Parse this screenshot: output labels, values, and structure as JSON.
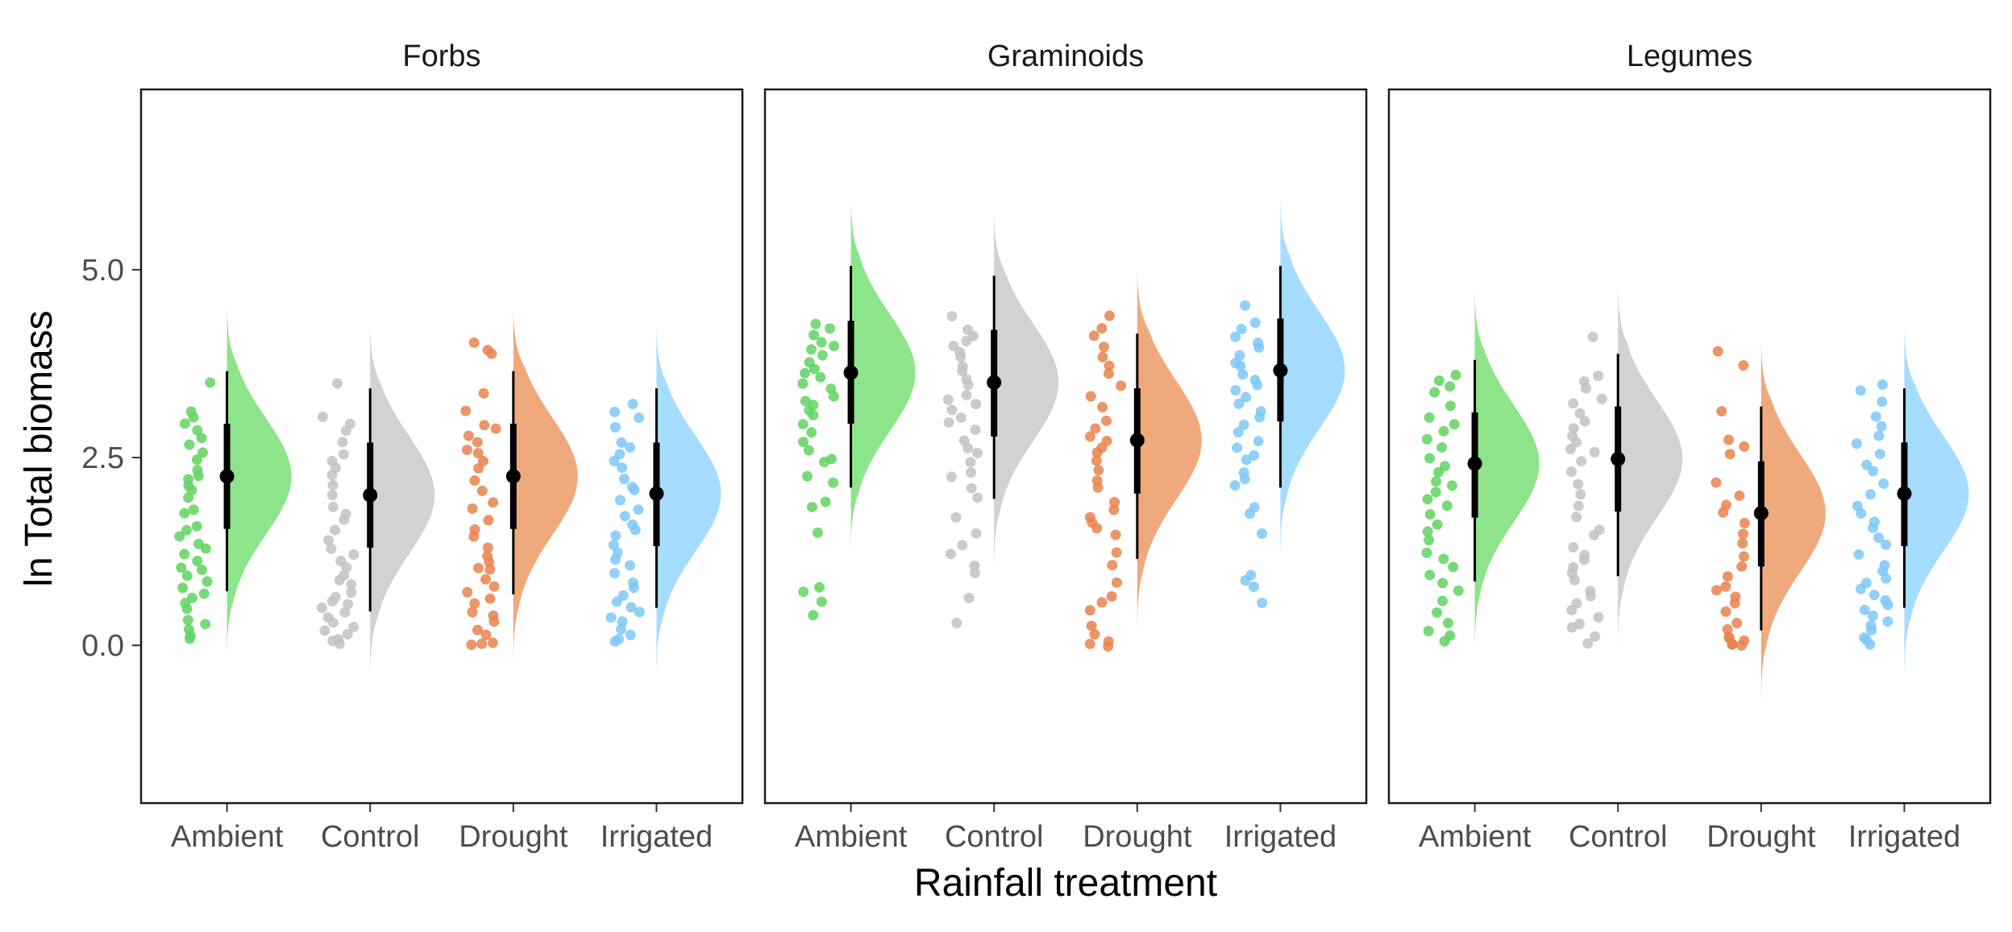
{
  "chart_data": {
    "type": "raincloud",
    "xlabel": "Rainfall treatment",
    "ylabel": "ln Total biomass",
    "ylim": [
      -2.1,
      7.4
    ],
    "yticks": [
      0.0,
      2.5,
      5.0
    ],
    "ytick_labels": [
      "0.0",
      "2.5",
      "5.0"
    ],
    "categories": [
      "Ambient",
      "Control",
      "Drought",
      "Irrigated"
    ],
    "colors": {
      "Ambient": "#5fd35f",
      "Control": "#c2c2c2",
      "Drought": "#e8834e",
      "Irrigated": "#7cc8f8"
    },
    "density_colors": {
      "Ambient": "#8ee48b",
      "Control": "#d2d2d2",
      "Drought": "#f0a97d",
      "Irrigated": "#a6dcff"
    },
    "summary_color": "#000000",
    "grid": false,
    "panels": [
      {
        "label": "Forbs",
        "groups": [
          {
            "category": "Ambient",
            "mean": 2.25,
            "q25": 1.55,
            "q75": 2.95,
            "lo": 0.72,
            "hi": 3.65,
            "dmin": -0.22,
            "dmax": 4.55,
            "points": [
              0.08,
              0.15,
              0.22,
              0.3,
              0.35,
              0.48,
              0.55,
              0.62,
              0.7,
              0.78,
              0.85,
              0.92,
              1.0,
              1.05,
              1.12,
              1.2,
              1.28,
              1.35,
              1.45,
              1.52,
              1.6,
              1.75,
              1.82,
              1.95,
              2.05,
              2.12,
              2.2,
              2.25,
              2.35,
              2.45,
              2.55,
              2.65,
              2.75,
              2.85,
              2.95,
              3.05,
              3.12,
              3.5
            ]
          },
          {
            "category": "Control",
            "mean": 2.0,
            "q25": 1.3,
            "q75": 2.7,
            "lo": 0.45,
            "hi": 3.42,
            "dmin": -0.45,
            "dmax": 4.28,
            "points": [
              0.02,
              0.05,
              0.1,
              0.15,
              0.2,
              0.25,
              0.3,
              0.38,
              0.45,
              0.5,
              0.55,
              0.6,
              0.65,
              0.72,
              0.8,
              0.88,
              0.95,
              1.05,
              1.12,
              1.2,
              1.3,
              1.42,
              1.55,
              1.65,
              1.75,
              1.85,
              2.0,
              2.15,
              2.25,
              2.35,
              2.45,
              2.55,
              2.7,
              2.85,
              2.95,
              3.05,
              3.5
            ]
          },
          {
            "category": "Drought",
            "mean": 2.25,
            "q25": 1.55,
            "q75": 2.95,
            "lo": 0.68,
            "hi": 3.65,
            "dmin": -0.32,
            "dmax": 4.5,
            "points": [
              0.0,
              0.02,
              0.05,
              0.12,
              0.2,
              0.3,
              0.38,
              0.45,
              0.55,
              0.62,
              0.7,
              0.8,
              0.9,
              1.0,
              1.05,
              1.12,
              1.2,
              1.3,
              1.45,
              1.55,
              1.65,
              1.8,
              1.9,
              2.05,
              2.2,
              2.35,
              2.45,
              2.55,
              2.62,
              2.7,
              2.78,
              2.88,
              2.95,
              3.1,
              3.35,
              3.9,
              3.95,
              4.05
            ]
          },
          {
            "category": "Irrigated",
            "mean": 2.02,
            "q25": 1.32,
            "q75": 2.7,
            "lo": 0.5,
            "hi": 3.42,
            "dmin": -0.45,
            "dmax": 4.28,
            "points": [
              0.05,
              0.1,
              0.15,
              0.22,
              0.3,
              0.38,
              0.45,
              0.52,
              0.6,
              0.68,
              0.75,
              0.85,
              0.95,
              1.08,
              1.15,
              1.22,
              1.35,
              1.45,
              1.52,
              1.6,
              1.72,
              1.8,
              1.95,
              2.05,
              2.12,
              2.22,
              2.35,
              2.45,
              2.55,
              2.62,
              2.7,
              2.9,
              3.05,
              3.12,
              3.2
            ]
          }
        ]
      },
      {
        "label": "Graminoids",
        "groups": [
          {
            "category": "Ambient",
            "mean": 3.63,
            "q25": 2.95,
            "q75": 4.32,
            "lo": 2.1,
            "hi": 5.05,
            "dmin": 1.22,
            "dmax": 5.98,
            "points": [
              0.42,
              0.58,
              0.72,
              0.78,
              1.5,
              1.85,
              1.9,
              2.15,
              2.25,
              2.42,
              2.5,
              2.6,
              2.72,
              2.85,
              2.95,
              3.05,
              3.12,
              3.2,
              3.25,
              3.32,
              3.4,
              3.48,
              3.55,
              3.62,
              3.7,
              3.78,
              3.85,
              3.92,
              4.0,
              4.05,
              4.12,
              4.2,
              4.28
            ]
          },
          {
            "category": "Control",
            "mean": 3.5,
            "q25": 2.78,
            "q75": 4.2,
            "lo": 1.95,
            "hi": 4.92,
            "dmin": 0.95,
            "dmax": 5.8,
            "points": [
              0.28,
              0.62,
              0.95,
              1.05,
              1.2,
              1.35,
              1.5,
              1.7,
              1.95,
              2.1,
              2.25,
              2.3,
              2.45,
              2.55,
              2.62,
              2.72,
              2.85,
              2.95,
              3.05,
              3.12,
              3.2,
              3.28,
              3.35,
              3.45,
              3.55,
              3.65,
              3.72,
              3.82,
              3.92,
              4.0,
              4.05,
              4.12,
              4.2,
              4.38
            ]
          },
          {
            "category": "Drought",
            "mean": 2.73,
            "q25": 2.02,
            "q75": 3.42,
            "lo": 1.15,
            "hi": 4.15,
            "dmin": 0.12,
            "dmax": 5.02,
            "points": [
              0.0,
              0.02,
              0.05,
              0.15,
              0.28,
              0.45,
              0.58,
              0.65,
              0.85,
              1.05,
              1.25,
              1.45,
              1.55,
              1.62,
              1.7,
              1.8,
              1.9,
              2.1,
              2.2,
              2.35,
              2.45,
              2.55,
              2.62,
              2.7,
              2.78,
              2.9,
              3.0,
              3.15,
              3.3,
              3.45,
              3.6,
              3.72,
              3.85,
              3.95,
              4.1,
              4.2,
              4.38
            ]
          },
          {
            "category": "Irrigated",
            "mean": 3.66,
            "q25": 2.98,
            "q75": 4.35,
            "lo": 2.1,
            "hi": 5.05,
            "dmin": 1.12,
            "dmax": 6.0,
            "points": [
              0.55,
              0.8,
              0.88,
              0.95,
              1.5,
              1.75,
              1.85,
              2.12,
              2.2,
              2.3,
              2.45,
              2.52,
              2.62,
              2.72,
              2.85,
              2.95,
              3.05,
              3.12,
              3.2,
              3.3,
              3.4,
              3.48,
              3.55,
              3.62,
              3.7,
              3.78,
              3.85,
              3.95,
              4.02,
              4.1,
              4.2,
              4.3,
              4.52
            ]
          }
        ]
      },
      {
        "label": "Legumes",
        "groups": [
          {
            "category": "Ambient",
            "mean": 2.42,
            "q25": 1.7,
            "q75": 3.1,
            "lo": 0.85,
            "hi": 3.8,
            "dmin": -0.18,
            "dmax": 4.75,
            "points": [
              0.05,
              0.12,
              0.2,
              0.28,
              0.45,
              0.6,
              0.72,
              0.85,
              0.95,
              1.05,
              1.15,
              1.25,
              1.38,
              1.5,
              1.62,
              1.75,
              1.85,
              1.95,
              2.05,
              2.12,
              2.2,
              2.3,
              2.4,
              2.5,
              2.62,
              2.75,
              2.85,
              2.95,
              3.05,
              3.2,
              3.35,
              3.45,
              3.52,
              3.6
            ]
          },
          {
            "category": "Control",
            "mean": 2.48,
            "q25": 1.78,
            "q75": 3.18,
            "lo": 0.92,
            "hi": 3.88,
            "dmin": -0.12,
            "dmax": 4.85,
            "points": [
              0.02,
              0.12,
              0.22,
              0.3,
              0.38,
              0.48,
              0.55,
              0.65,
              0.72,
              0.85,
              0.95,
              1.05,
              1.15,
              1.22,
              1.3,
              1.45,
              1.52,
              1.7,
              1.85,
              2.0,
              2.15,
              2.3,
              2.45,
              2.55,
              2.62,
              2.7,
              2.8,
              2.9,
              3.0,
              3.1,
              3.2,
              3.28,
              3.4,
              3.5,
              3.6,
              4.12
            ]
          },
          {
            "category": "Drought",
            "mean": 1.76,
            "q25": 1.05,
            "q75": 2.45,
            "lo": 0.2,
            "hi": 3.18,
            "dmin": -0.82,
            "dmax": 4.08,
            "points": [
              0.0,
              0.0,
              0.02,
              0.05,
              0.08,
              0.12,
              0.2,
              0.3,
              0.45,
              0.55,
              0.65,
              0.72,
              0.8,
              0.92,
              1.05,
              1.2,
              1.35,
              1.5,
              1.62,
              1.75,
              1.88,
              2.0,
              2.15,
              2.55,
              2.65,
              2.75,
              3.1,
              3.72,
              3.9
            ]
          },
          {
            "category": "Irrigated",
            "mean": 2.02,
            "q25": 1.32,
            "q75": 2.7,
            "lo": 0.5,
            "hi": 3.42,
            "dmin": -0.48,
            "dmax": 4.25,
            "points": [
              0.02,
              0.08,
              0.12,
              0.18,
              0.25,
              0.3,
              0.38,
              0.45,
              0.52,
              0.6,
              0.68,
              0.75,
              0.82,
              0.9,
              0.98,
              1.08,
              1.2,
              1.32,
              1.45,
              1.55,
              1.65,
              1.75,
              1.85,
              2.0,
              2.15,
              2.3,
              2.42,
              2.55,
              2.68,
              2.8,
              2.92,
              3.05,
              3.25,
              3.38,
              3.45
            ]
          }
        ]
      }
    ]
  }
}
